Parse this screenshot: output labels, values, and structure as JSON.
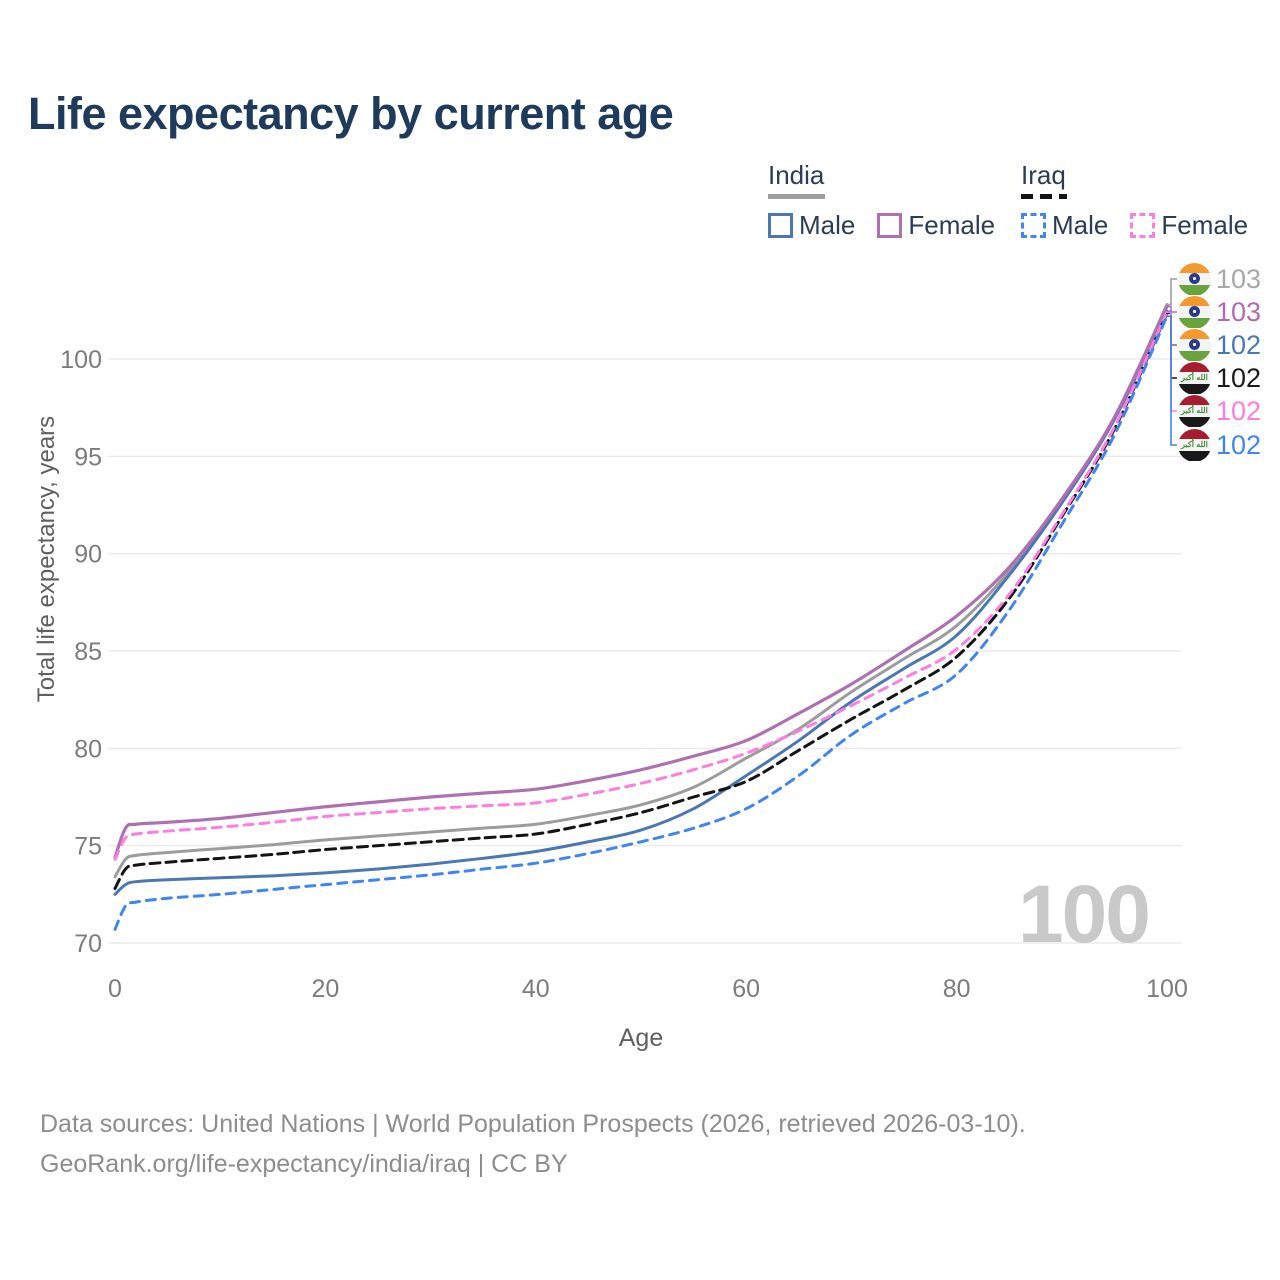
{
  "title": "Life expectancy by current age",
  "legend": {
    "india": {
      "name": "India",
      "male": "Male",
      "female": "Female"
    },
    "iraq": {
      "name": "Iraq",
      "male": "Male",
      "female": "Female"
    }
  },
  "watermark": "100",
  "footer": {
    "line1": "Data sources: United Nations | World Population Prospects (2026, retrieved 2026-03-10).",
    "line2": "GeoRank.org/life-expectancy/india/iraq | CC BY"
  },
  "colors": {
    "india_total": "#9c9c9c",
    "india_male": "#4a78b5",
    "india_female": "#b06fb3",
    "iraq_total": "#141414",
    "iraq_male": "#3f86f0",
    "iraq_female": "#ff7de2",
    "grid": "#ebebeb",
    "title_text": "#1e3a5c",
    "tick_text": "#7c7c7c",
    "watermark_text": "#c9c9c9"
  },
  "end_labels": [
    {
      "flag": "india",
      "series": "india_total",
      "value": "103",
      "color": "#a8a8a8"
    },
    {
      "flag": "india",
      "series": "india_female",
      "value": "103",
      "color": "#b469b5"
    },
    {
      "flag": "india",
      "series": "india_male",
      "value": "102",
      "color": "#4a78b5"
    },
    {
      "flag": "iraq",
      "series": "iraq_total",
      "value": "102",
      "color": "#1a1a1a"
    },
    {
      "flag": "iraq",
      "series": "iraq_female",
      "value": "102",
      "color": "#ff7de2"
    },
    {
      "flag": "iraq",
      "series": "iraq_male",
      "value": "102",
      "color": "#3f86f0"
    }
  ],
  "chart_data": {
    "type": "line",
    "title": "Life expectancy by current age",
    "xlabel": "Age",
    "ylabel": "Total life expectancy, years",
    "xlim": [
      0,
      100
    ],
    "ylim": [
      69,
      104
    ],
    "grid": "horizontal-only",
    "legend_position": "top-right",
    "xticks": [
      0,
      20,
      40,
      60,
      80,
      100
    ],
    "yticks": [
      70,
      75,
      80,
      85,
      90,
      95,
      100
    ],
    "x": [
      0,
      1,
      2,
      5,
      10,
      15,
      20,
      25,
      30,
      35,
      40,
      45,
      50,
      55,
      60,
      65,
      70,
      75,
      80,
      85,
      90,
      95,
      100
    ],
    "series": [
      {
        "key": "india_total",
        "name": "India Total",
        "country": "India",
        "sex": "total",
        "style": "solid",
        "color": "#9c9c9c",
        "width": 3,
        "values": [
          73.4,
          74.3,
          74.5,
          74.65,
          74.85,
          75.05,
          75.3,
          75.5,
          75.7,
          75.9,
          76.1,
          76.55,
          77.1,
          78.0,
          79.5,
          81.0,
          82.9,
          84.6,
          86.3,
          89.1,
          92.75,
          97.0,
          102.8
        ]
      },
      {
        "key": "india_male",
        "name": "India Male",
        "country": "India",
        "sex": "male",
        "style": "solid",
        "color": "#4a78b5",
        "width": 3,
        "values": [
          72.5,
          73.0,
          73.15,
          73.25,
          73.35,
          73.45,
          73.6,
          73.8,
          74.05,
          74.35,
          74.7,
          75.2,
          75.8,
          76.9,
          78.6,
          80.4,
          82.4,
          84.1,
          85.8,
          88.9,
          92.6,
          96.9,
          102.45
        ]
      },
      {
        "key": "india_female",
        "name": "India Female",
        "country": "India",
        "sex": "female",
        "style": "solid",
        "color": "#b06fb3",
        "width": 3.2,
        "values": [
          74.4,
          75.9,
          76.1,
          76.2,
          76.4,
          76.7,
          77.0,
          77.25,
          77.5,
          77.7,
          77.9,
          78.35,
          78.9,
          79.6,
          80.4,
          81.8,
          83.3,
          85.0,
          86.8,
          89.3,
          92.8,
          97.0,
          102.7
        ]
      },
      {
        "key": "iraq_total",
        "name": "Iraq Total",
        "country": "Iraq",
        "sex": "total",
        "style": "dashed",
        "color": "#141414",
        "width": 3,
        "values": [
          72.8,
          73.8,
          74.0,
          74.15,
          74.35,
          74.55,
          74.8,
          75.0,
          75.2,
          75.4,
          75.6,
          76.1,
          76.7,
          77.5,
          78.3,
          79.9,
          81.5,
          83.0,
          84.7,
          87.7,
          91.9,
          96.4,
          102.35
        ]
      },
      {
        "key": "iraq_female",
        "name": "Iraq Female",
        "country": "Iraq",
        "sex": "female",
        "style": "dashed",
        "color": "#ff7de2",
        "width": 3,
        "values": [
          74.3,
          75.4,
          75.6,
          75.75,
          75.95,
          76.2,
          76.5,
          76.7,
          76.9,
          77.05,
          77.2,
          77.65,
          78.2,
          78.9,
          79.75,
          80.9,
          82.2,
          83.6,
          85.1,
          87.9,
          92.0,
          96.5,
          102.4
        ]
      },
      {
        "key": "iraq_male",
        "name": "Iraq Male",
        "country": "Iraq",
        "sex": "male",
        "style": "dashed",
        "color": "#3f86f0",
        "width": 3,
        "values": [
          70.7,
          71.9,
          72.1,
          72.3,
          72.5,
          72.75,
          73.0,
          73.25,
          73.5,
          73.8,
          74.1,
          74.6,
          75.2,
          75.9,
          76.9,
          78.6,
          80.7,
          82.3,
          83.8,
          87.1,
          91.5,
          96.1,
          102.2
        ]
      }
    ]
  }
}
